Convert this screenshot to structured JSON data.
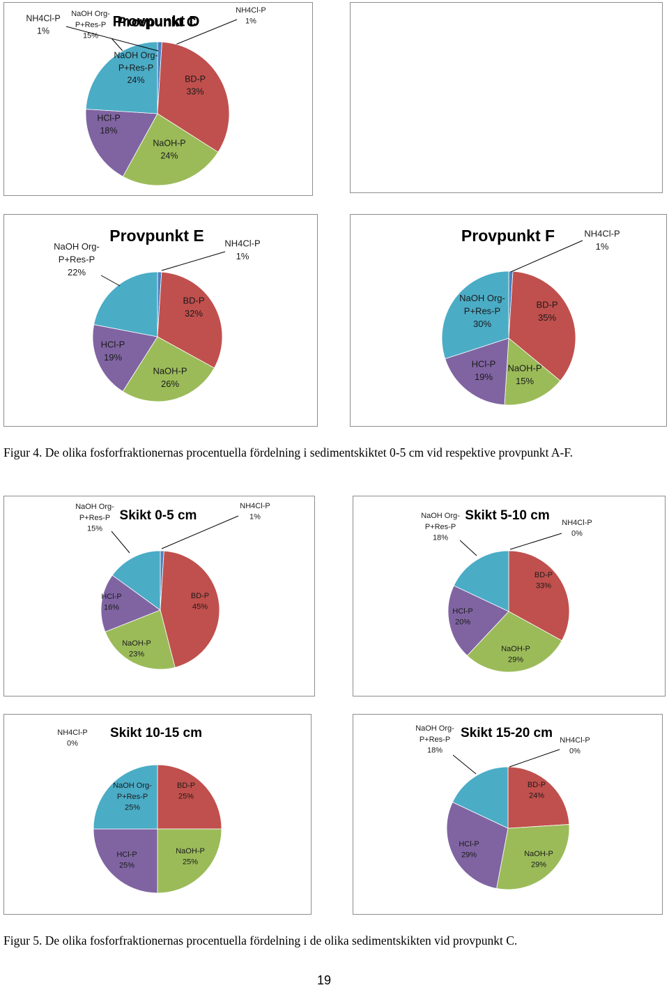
{
  "colors": {
    "BD-P": "#c0504d",
    "NaOH-P": "#9bbb59",
    "HCl-P": "#8064a2",
    "NaOH Org-P+Res-P": "#4bacc6",
    "NH4Cl-P": "#4f81bd"
  },
  "captions": {
    "fig4": "Figur 4. De olika fosforfraktionernas procentuella fördelning i sedimentskiktet 0-5 cm vid respektive provpunkt A-F.",
    "fig5": "Figur 5. De olika fosforfraktionernas procentuella fördelning i de olika sedimentskikten vid provpunkt C."
  },
  "page_number": "19",
  "chart_data": [
    {
      "type": "pie",
      "title": "Provpunkt C",
      "slices": [
        {
          "label": "BD-P",
          "value": 45,
          "display": "45%"
        },
        {
          "label": "NaOH-P",
          "value": 23,
          "display": "23%"
        },
        {
          "label": "HCl-P",
          "value": 16,
          "display": "16%"
        },
        {
          "label": "NaOH Org-P+Res-P",
          "value": 15,
          "display": "15%"
        },
        {
          "label": "NH4Cl-P",
          "value": 1,
          "display": "1%"
        }
      ]
    },
    {
      "type": "pie",
      "title": "Provpunkt D",
      "slices": [
        {
          "label": "BD-P",
          "value": 33,
          "display": "33%"
        },
        {
          "label": "NaOH-P",
          "value": 24,
          "display": "24%"
        },
        {
          "label": "HCl-P",
          "value": 18,
          "display": "18%"
        },
        {
          "label": "NaOH Org-P+Res-P",
          "value": 24,
          "display": "24%"
        },
        {
          "label": "NH4Cl-P",
          "value": 1,
          "display": "1%"
        }
      ]
    },
    {
      "type": "pie",
      "title": "Provpunkt E",
      "slices": [
        {
          "label": "BD-P",
          "value": 32,
          "display": "32%"
        },
        {
          "label": "NaOH-P",
          "value": 26,
          "display": "26%"
        },
        {
          "label": "HCl-P",
          "value": 19,
          "display": "19%"
        },
        {
          "label": "NaOH Org-P+Res-P",
          "value": 22,
          "display": "22%"
        },
        {
          "label": "NH4Cl-P",
          "value": 1,
          "display": "1%"
        }
      ]
    },
    {
      "type": "pie",
      "title": "Provpunkt F",
      "slices": [
        {
          "label": "BD-P",
          "value": 35,
          "display": "35%"
        },
        {
          "label": "NaOH-P",
          "value": 15,
          "display": "15%"
        },
        {
          "label": "HCl-P",
          "value": 19,
          "display": "19%"
        },
        {
          "label": "NaOH Org-P+Res-P",
          "value": 30,
          "display": "30%"
        },
        {
          "label": "NH4Cl-P",
          "value": 1,
          "display": "1%"
        }
      ]
    },
    {
      "type": "pie",
      "title": "Skikt 0-5 cm",
      "slices": [
        {
          "label": "BD-P",
          "value": 45,
          "display": "45%"
        },
        {
          "label": "NaOH-P",
          "value": 23,
          "display": "23%"
        },
        {
          "label": "HCl-P",
          "value": 16,
          "display": "16%"
        },
        {
          "label": "NaOH Org-P+Res-P",
          "value": 15,
          "display": "15%"
        },
        {
          "label": "NH4Cl-P",
          "value": 1,
          "display": "1%"
        }
      ]
    },
    {
      "type": "pie",
      "title": "Skikt 5-10 cm",
      "slices": [
        {
          "label": "BD-P",
          "value": 33,
          "display": "33%"
        },
        {
          "label": "NaOH-P",
          "value": 29,
          "display": "29%"
        },
        {
          "label": "HCl-P",
          "value": 20,
          "display": "20%"
        },
        {
          "label": "NaOH Org-P+Res-P",
          "value": 18,
          "display": "18%"
        },
        {
          "label": "NH4Cl-P",
          "value": 0,
          "display": "0%"
        }
      ]
    },
    {
      "type": "pie",
      "title": "Skikt 10-15 cm",
      "slices": [
        {
          "label": "BD-P",
          "value": 25,
          "display": "25%"
        },
        {
          "label": "NaOH-P",
          "value": 25,
          "display": "25%"
        },
        {
          "label": "HCl-P",
          "value": 25,
          "display": "25%"
        },
        {
          "label": "NaOH Org-P+Res-P",
          "value": 25,
          "display": "25%"
        },
        {
          "label": "NH4Cl-P",
          "value": 0,
          "display": "0%"
        }
      ]
    },
    {
      "type": "pie",
      "title": "Skikt 15-20 cm",
      "slices": [
        {
          "label": "BD-P",
          "value": 24,
          "display": "24%"
        },
        {
          "label": "NaOH-P",
          "value": 29,
          "display": "29%"
        },
        {
          "label": "HCl-P",
          "value": 29,
          "display": "29%"
        },
        {
          "label": "NaOH Org-P+Res-P",
          "value": 18,
          "display": "18%"
        },
        {
          "label": "NH4Cl-P",
          "value": 0,
          "display": "0%"
        }
      ]
    }
  ]
}
